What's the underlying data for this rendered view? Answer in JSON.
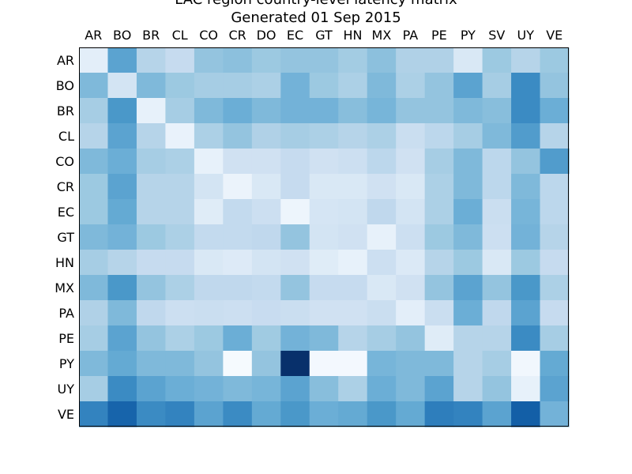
{
  "chart_data": {
    "type": "heatmap",
    "title_lines": [
      "LAC region country-level latency matrix",
      "Generated 01 Sep 2015"
    ],
    "column_labels": [
      "AR",
      "BO",
      "BR",
      "CL",
      "CO",
      "CR",
      "DO",
      "EC",
      "GT",
      "HN",
      "MX",
      "PA",
      "PE",
      "PY",
      "SV",
      "UY",
      "VE"
    ],
    "row_labels": [
      "AR",
      "BO",
      "BR",
      "CL",
      "CO",
      "CR",
      "EC",
      "GT",
      "HN",
      "MX",
      "PA",
      "PE",
      "PY",
      "UY",
      "VE"
    ],
    "grid": false,
    "colormap": "Blues",
    "value_range": [
      0,
      1
    ],
    "values": [
      [
        0.1,
        0.55,
        0.3,
        0.25,
        0.4,
        0.42,
        0.38,
        0.4,
        0.4,
        0.36,
        0.42,
        0.32,
        0.32,
        0.15,
        0.38,
        0.3,
        0.38
      ],
      [
        0.45,
        0.18,
        0.45,
        0.38,
        0.35,
        0.35,
        0.33,
        0.48,
        0.38,
        0.33,
        0.45,
        0.33,
        0.4,
        0.55,
        0.35,
        0.65,
        0.4
      ],
      [
        0.35,
        0.6,
        0.08,
        0.35,
        0.45,
        0.5,
        0.45,
        0.48,
        0.48,
        0.43,
        0.47,
        0.4,
        0.4,
        0.45,
        0.43,
        0.65,
        0.5
      ],
      [
        0.3,
        0.55,
        0.3,
        0.07,
        0.33,
        0.4,
        0.32,
        0.35,
        0.33,
        0.3,
        0.33,
        0.23,
        0.28,
        0.35,
        0.45,
        0.58,
        0.3
      ],
      [
        0.45,
        0.5,
        0.35,
        0.33,
        0.08,
        0.2,
        0.2,
        0.25,
        0.2,
        0.22,
        0.28,
        0.2,
        0.35,
        0.45,
        0.28,
        0.4,
        0.58
      ],
      [
        0.38,
        0.55,
        0.3,
        0.3,
        0.18,
        0.06,
        0.15,
        0.25,
        0.15,
        0.15,
        0.2,
        0.15,
        0.33,
        0.45,
        0.28,
        0.45,
        0.28
      ],
      [
        0.38,
        0.52,
        0.3,
        0.3,
        0.12,
        0.26,
        0.22,
        0.05,
        0.17,
        0.18,
        0.27,
        0.18,
        0.33,
        0.5,
        0.23,
        0.47,
        0.28
      ],
      [
        0.45,
        0.48,
        0.38,
        0.33,
        0.26,
        0.26,
        0.27,
        0.4,
        0.18,
        0.2,
        0.08,
        0.22,
        0.38,
        0.45,
        0.22,
        0.48,
        0.3
      ],
      [
        0.35,
        0.3,
        0.25,
        0.25,
        0.15,
        0.13,
        0.18,
        0.2,
        0.12,
        0.08,
        0.22,
        0.14,
        0.3,
        0.38,
        0.15,
        0.38,
        0.25
      ],
      [
        0.45,
        0.6,
        0.4,
        0.33,
        0.27,
        0.27,
        0.26,
        0.4,
        0.25,
        0.25,
        0.15,
        0.2,
        0.4,
        0.55,
        0.4,
        0.6,
        0.33
      ],
      [
        0.32,
        0.45,
        0.27,
        0.22,
        0.23,
        0.22,
        0.24,
        0.23,
        0.2,
        0.2,
        0.23,
        0.1,
        0.23,
        0.5,
        0.27,
        0.55,
        0.25
      ],
      [
        0.35,
        0.55,
        0.4,
        0.33,
        0.38,
        0.5,
        0.37,
        0.48,
        0.45,
        0.3,
        0.35,
        0.4,
        0.12,
        0.3,
        0.3,
        0.65,
        0.35
      ],
      [
        0.45,
        0.52,
        0.45,
        0.45,
        0.4,
        0.01,
        0.4,
        1.0,
        0.02,
        0.02,
        0.47,
        0.45,
        0.45,
        0.3,
        0.35,
        0.03,
        0.52
      ],
      [
        0.35,
        0.65,
        0.55,
        0.5,
        0.48,
        0.45,
        0.47,
        0.55,
        0.43,
        0.33,
        0.5,
        0.45,
        0.55,
        0.3,
        0.4,
        0.08,
        0.55
      ],
      [
        0.68,
        0.8,
        0.65,
        0.68,
        0.55,
        0.65,
        0.52,
        0.6,
        0.5,
        0.52,
        0.6,
        0.52,
        0.7,
        0.68,
        0.55,
        0.82,
        0.48
      ]
    ]
  }
}
